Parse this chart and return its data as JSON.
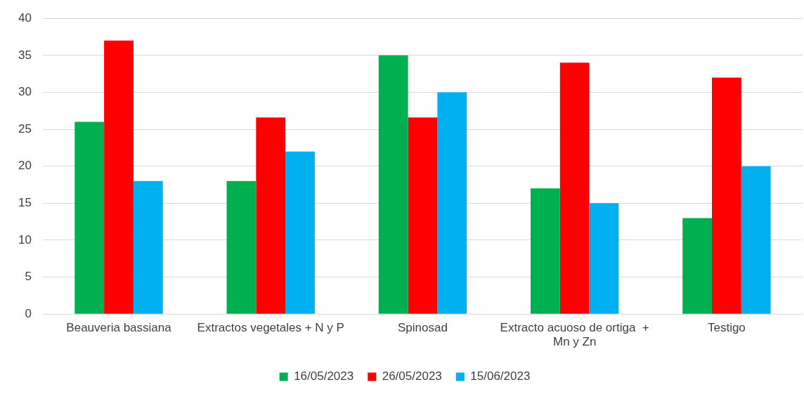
{
  "chart_data": {
    "type": "bar",
    "categories": [
      "Beauveria bassiana",
      "Extractos vegetales + N y P",
      "Spinosad",
      "Extracto acuoso de ortiga  + Mn y Zn",
      "Testigo"
    ],
    "series": [
      {
        "name": "16/05/2023",
        "color": "#00b050",
        "values": [
          26,
          18,
          35,
          17,
          13
        ]
      },
      {
        "name": "26/05/2023",
        "color": "#ff0000",
        "values": [
          37,
          26.6,
          26.6,
          34,
          32
        ]
      },
      {
        "name": "15/06/2023",
        "color": "#00b0f0",
        "values": [
          18,
          22,
          30,
          15,
          20
        ]
      }
    ],
    "ylim": [
      0,
      40
    ],
    "yticks": [
      0,
      5,
      10,
      15,
      20,
      25,
      30,
      35,
      40
    ],
    "grid": "y",
    "legend": "bottom"
  }
}
